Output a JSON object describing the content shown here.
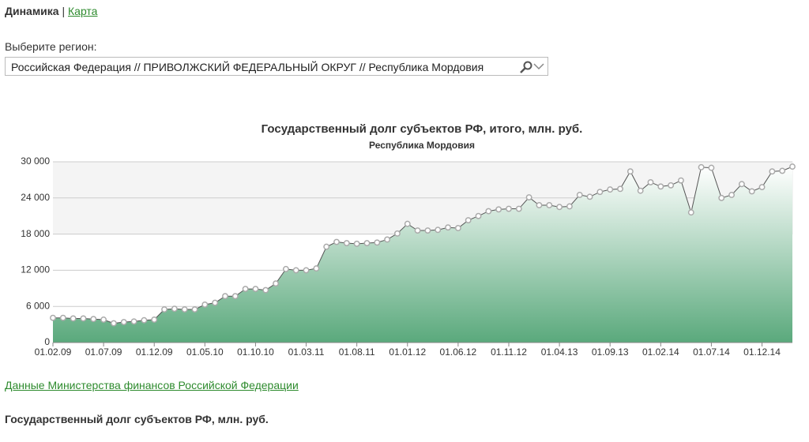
{
  "nav": {
    "active": "Динамика",
    "separator": "|",
    "link": "Карта"
  },
  "region": {
    "label": "Выберите регион:",
    "value": "Российская Федерация // ПРИВОЛЖСКИЙ ФЕДЕРАЛЬНЫЙ ОКРУГ // Республика Мордовия"
  },
  "chart_data": {
    "type": "area",
    "title": "Государственный долг субъектов РФ, итого, млн. руб.",
    "subtitle": "Республика Мордовия",
    "categories": [
      "01.02.09",
      null,
      null,
      null,
      null,
      "01.07.09",
      null,
      null,
      null,
      null,
      "01.12.09",
      null,
      null,
      null,
      null,
      "01.05.10",
      null,
      null,
      null,
      null,
      "01.10.10",
      null,
      null,
      null,
      null,
      "01.03.11",
      null,
      null,
      null,
      null,
      "01.08.11",
      null,
      null,
      null,
      null,
      "01.01.12",
      null,
      null,
      null,
      null,
      "01.06.12",
      null,
      null,
      null,
      null,
      "01.11.12",
      null,
      null,
      null,
      null,
      "01.04.13",
      null,
      null,
      null,
      null,
      "01.09.13",
      null,
      null,
      null,
      null,
      "01.02.14",
      null,
      null,
      null,
      null,
      "01.07.14",
      null,
      null,
      null,
      null,
      "01.12.14",
      null,
      null,
      null
    ],
    "values": [
      4100,
      4100,
      4000,
      4000,
      3900,
      3800,
      3200,
      3400,
      3500,
      3700,
      3800,
      5500,
      5600,
      5500,
      5500,
      6300,
      6600,
      7700,
      7700,
      8900,
      8900,
      8700,
      9800,
      12200,
      12000,
      12000,
      12300,
      15900,
      16700,
      16500,
      16400,
      16500,
      16600,
      17100,
      18100,
      19700,
      18600,
      18600,
      18700,
      19100,
      19000,
      20300,
      21000,
      21800,
      22100,
      22200,
      22200,
      24100,
      22800,
      22800,
      22500,
      22600,
      24500,
      24200,
      25000,
      25400,
      25500,
      28400,
      25200,
      26600,
      25900,
      26100,
      26900,
      21600,
      29100,
      29000,
      24000,
      24500,
      26300,
      25100,
      25800,
      28400,
      28500,
      29200
    ],
    "color": "#5aa97c",
    "ylim": [
      0,
      30000
    ],
    "yticks": [
      0,
      {
        "value": 6000,
        "label": "6 000"
      },
      {
        "value": 12000,
        "label": "12 000"
      },
      {
        "value": 18000,
        "label": "18 000"
      },
      {
        "value": 24000,
        "label": "24 000"
      },
      {
        "value": 30000,
        "label": "30 000"
      }
    ],
    "grid": true
  },
  "source_link": "Данные Министерства финансов Российской Федерации",
  "section_title": "Государственный долг субъектов РФ, млн. руб."
}
